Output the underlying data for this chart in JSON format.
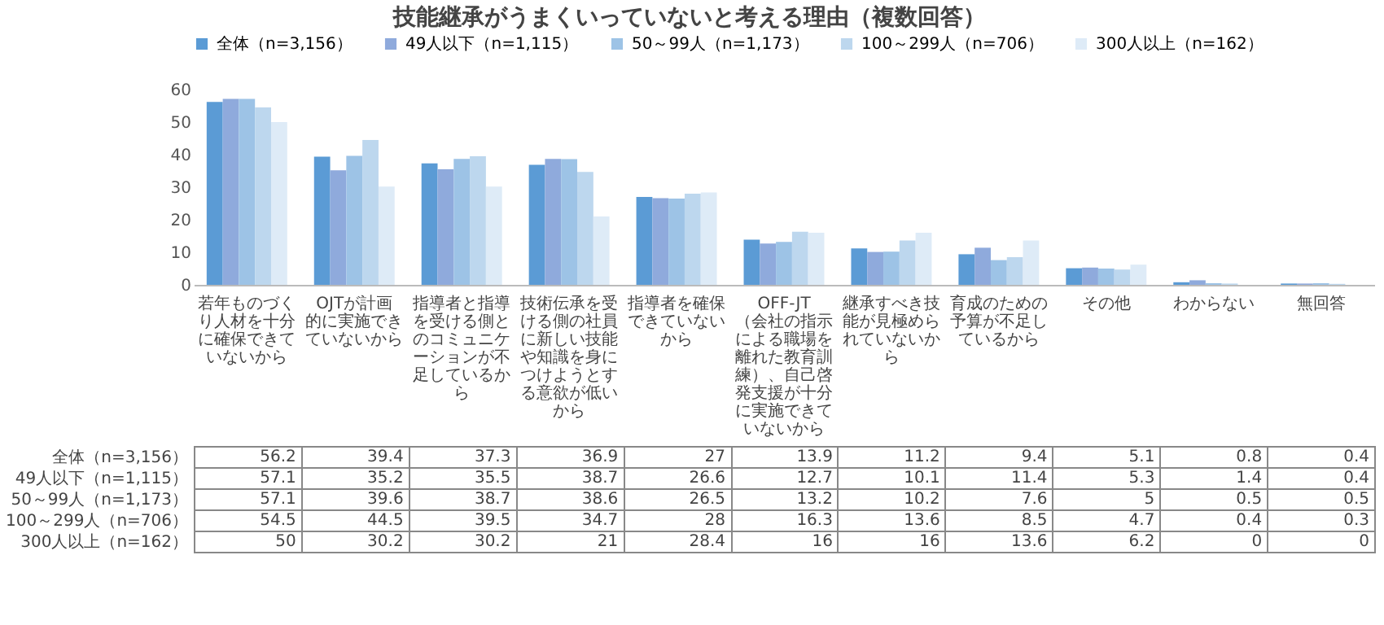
{
  "chart_data": {
    "type": "bar",
    "title": "技能継承がうまくいっていないと考える理由（複数回答）",
    "categories": [
      "若年ものづくり人材を十分に確保できていないから",
      "OJTが計画的に実施できていないから",
      "指導者と指導を受ける側とのコミュニケーションが不足しているから",
      "技術伝承を受ける側の社員に新しい技能や知識を身につけようとする意欲が低いから",
      "指導者を確保できていないから",
      "OFF-JT（会社の指示による職場を離れた教育訓練）、自己啓発支援が十分に実施できていないから",
      "継承すべき技能が見極められていないから",
      "育成のための予算が不足しているから",
      "その他",
      "わからない",
      "無回答"
    ],
    "series": [
      {
        "name": "全体（n=3,156）",
        "color": "#5b9bd5",
        "values": [
          56.2,
          39.4,
          37.3,
          36.9,
          27,
          13.9,
          11.2,
          9.4,
          5.1,
          0.8,
          0.4
        ]
      },
      {
        "name": "49人以下（n=1,115）",
        "color": "#8faadc",
        "values": [
          57.1,
          35.2,
          35.5,
          38.7,
          26.6,
          12.7,
          10.1,
          11.4,
          5.3,
          1.4,
          0.4
        ]
      },
      {
        "name": "50～99人（n=1,173）",
        "color": "#9dc3e6",
        "values": [
          57.1,
          39.6,
          38.7,
          38.6,
          26.5,
          13.2,
          10.2,
          7.6,
          5,
          0.5,
          0.5
        ]
      },
      {
        "name": "100～299人（n=706）",
        "color": "#bdd7ee",
        "values": [
          54.5,
          44.5,
          39.5,
          34.7,
          28,
          16.3,
          13.6,
          8.5,
          4.7,
          0.4,
          0.3
        ]
      },
      {
        "name": "300人以上（n=162）",
        "color": "#deebf7",
        "values": [
          50,
          30.2,
          30.2,
          21,
          28.4,
          16,
          16,
          13.6,
          6.2,
          0,
          0
        ]
      }
    ],
    "ylim": [
      0,
      60
    ],
    "yticks": [
      0,
      10,
      20,
      30,
      40,
      50,
      60
    ],
    "grid": false,
    "legend": "top",
    "data_labels": true
  }
}
